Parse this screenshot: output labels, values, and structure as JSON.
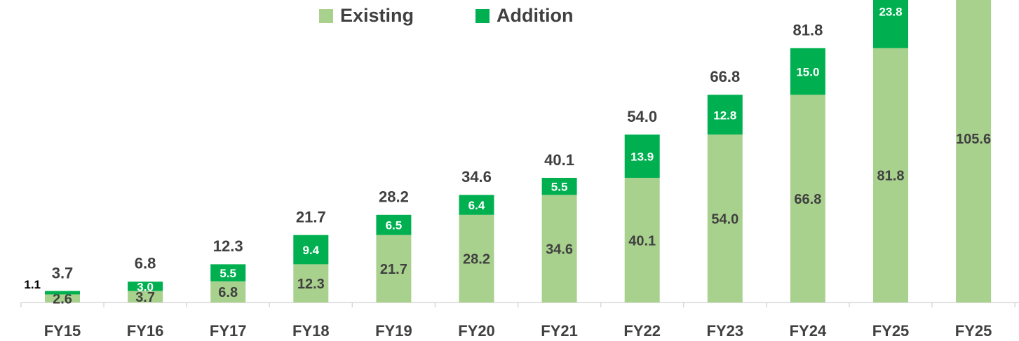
{
  "chart_data": {
    "type": "stacked-bar",
    "categories": [
      "FY15",
      "FY16",
      "FY17",
      "FY18",
      "FY19",
      "FY20",
      "FY21",
      "FY22",
      "FY23",
      "FY24",
      "FY25",
      "FY25"
    ],
    "series": [
      {
        "name": "Existing",
        "color": "#a9d18e",
        "values": [
          2.6,
          3.7,
          6.8,
          12.3,
          21.7,
          28.2,
          34.6,
          40.1,
          54.0,
          66.8,
          81.8,
          105.6
        ],
        "value_labels": [
          "2.6",
          "3.7",
          "6.8",
          "12.3",
          "21.7",
          "28.2",
          "34.6",
          "40.1",
          "54.0",
          "66.8",
          "81.8",
          "105.6"
        ]
      },
      {
        "name": "Addition",
        "color": "#00b050",
        "values": [
          1.1,
          3.0,
          5.5,
          9.4,
          6.5,
          6.4,
          5.5,
          13.9,
          12.8,
          15.0,
          23.8,
          null
        ],
        "value_labels": [
          "1.1",
          "3.0",
          "5.5",
          "9.4",
          "6.5",
          "6.4",
          "5.5",
          "13.9",
          "12.8",
          "15.0",
          "23.8",
          null
        ]
      }
    ],
    "totals": {
      "values": [
        3.7,
        6.8,
        12.3,
        21.7,
        28.2,
        34.6,
        40.1,
        54.0,
        66.8,
        81.8,
        null,
        null
      ],
      "value_labels": [
        "3.7",
        "6.8",
        "12.3",
        "21.7",
        "28.2",
        "34.6",
        "40.1",
        "54.0",
        "66.8",
        "81.8",
        null,
        null
      ]
    },
    "legend": "top"
  }
}
